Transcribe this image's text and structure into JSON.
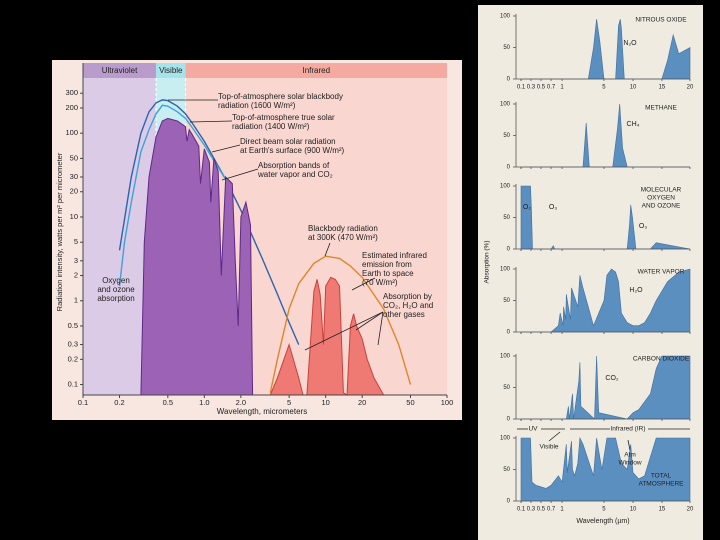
{
  "chart_data": [
    {
      "type": "line",
      "xscale": "log",
      "yscale": "log",
      "xlim": [
        0.1,
        100
      ],
      "ylim": [
        0.075,
        600
      ],
      "xticks": [
        0.1,
        0.2,
        0.5,
        {
          "value": 1,
          "label": "1.0"
        },
        {
          "value": 2,
          "label": "2.0"
        },
        5,
        10,
        20,
        50,
        100
      ],
      "yticks": [
        0.1,
        0.2,
        0.3,
        0.5,
        1,
        2,
        3,
        5,
        10,
        20,
        30,
        50,
        100,
        200,
        300
      ],
      "xlabel": "Wavelength, micrometers",
      "ylabel": "Radiation intensity, watts per m² per micrometer",
      "regions": [
        {
          "label": "Ultraviolet",
          "range": [
            0.1,
            0.4
          ],
          "color": "#dccbe6",
          "band_color": "#b99bcc"
        },
        {
          "label": "Visible",
          "range": [
            0.4,
            0.7
          ],
          "color": "#c9eef2",
          "band_color": "#a6e3ea"
        },
        {
          "label": "Infrared",
          "range": [
            0.7,
            100
          ],
          "color": "#f9d6cf",
          "band_color": "#f4aaa1"
        }
      ],
      "series": [
        {
          "color": "#2a64ad",
          "x": [
            0.2,
            0.25,
            0.3,
            0.35,
            0.4,
            0.45,
            0.5,
            0.6,
            0.7,
            0.8,
            1.0,
            1.5,
            2,
            3,
            4,
            5,
            6
          ],
          "values": [
            4,
            30,
            100,
            180,
            230,
            250,
            245,
            210,
            170,
            130,
            80,
            28,
            12,
            3.2,
            1.2,
            0.55,
            0.3
          ]
        },
        {
          "color": "#3aa3da",
          "x": [
            0.2,
            0.22,
            0.25,
            0.3,
            0.35,
            0.4,
            0.45,
            0.5,
            0.6,
            0.7,
            0.8,
            1.0,
            1.5
          ],
          "values": [
            1.5,
            5,
            15,
            60,
            110,
            170,
            215,
            210,
            180,
            150,
            115,
            72,
            28
          ]
        },
        {
          "color": "#5e2a86",
          "fill": "#9c62b6",
          "x": [
            0.3,
            0.32,
            0.35,
            0.4,
            0.45,
            0.5,
            0.6,
            0.7,
            0.72,
            0.75,
            0.8,
            0.9,
            0.93,
            1.0,
            1.1,
            1.13,
            1.2,
            1.3,
            1.38,
            1.5,
            1.7,
            1.8,
            1.9,
            2.0,
            2.2,
            2.4,
            2.5
          ],
          "values": [
            0.075,
            5,
            30,
            90,
            140,
            150,
            140,
            120,
            80,
            110,
            95,
            70,
            25,
            65,
            45,
            15,
            50,
            35,
            2,
            30,
            25,
            3,
            0.5,
            10,
            15,
            8,
            0.075
          ]
        },
        {
          "color": "#e0852b",
          "x": [
            3.5,
            4,
            5,
            6,
            8,
            10,
            13,
            16,
            20,
            30,
            40,
            50
          ],
          "values": [
            0.08,
            0.2,
            0.8,
            1.6,
            2.8,
            3.4,
            3.2,
            2.6,
            1.9,
            0.8,
            0.3,
            0.1
          ]
        },
        {
          "color": "#c9403b",
          "fill": "#ef7a74",
          "x": [
            3.5,
            4,
            5,
            6,
            6.5,
            7,
            8,
            8.5,
            9,
            9.6,
            10,
            11,
            12,
            13,
            14,
            15,
            16,
            17,
            18,
            20,
            22,
            25,
            30
          ],
          "values": [
            0.075,
            0.12,
            0.3,
            0.12,
            0.075,
            0.075,
            1.3,
            1.8,
            1.2,
            0.3,
            1.5,
            1.9,
            1.8,
            1.5,
            0.08,
            0.075,
            0.5,
            0.7,
            0.5,
            0.35,
            0.2,
            0.12,
            0.075
          ]
        }
      ],
      "annotations": [
        [
          "Top-of-atmosphere solar blackbody",
          "radiation (1600 W/m²)"
        ],
        [
          "Top-of-atmosphere true solar",
          "radiation (1400 W/m²)"
        ],
        [
          "Direct beam solar radiation",
          "at Earth's surface (900 W/m²)"
        ],
        [
          "Absorption bands of",
          "water vapor and CO₂"
        ],
        [
          "Blackbody radiation",
          "at 300K (470 W/m²)"
        ],
        [
          "Estimated infrared",
          "emission from",
          "Earth to space",
          "(70 W/m²)"
        ],
        [
          "Absorption by",
          "CO₂, H₂O and",
          "other gases"
        ],
        [
          "Oxygen",
          "and ozone",
          "absorption"
        ]
      ]
    },
    {
      "type": "area",
      "title": [
        "NITROUS OXIDE"
      ],
      "labels": [
        "N₂O"
      ],
      "color": "#5b8fc0",
      "xlim": [
        0.1,
        20
      ],
      "ylim": [
        0,
        100
      ],
      "yticks": [
        0,
        50,
        100
      ],
      "xticks": [
        0.1,
        0.3,
        0.5,
        0.7,
        1,
        5,
        10,
        15,
        20
      ],
      "x": [
        0.1,
        0.2,
        0.3,
        1,
        3.5,
        4,
        4.3,
        4.6,
        5,
        7,
        7.5,
        7.8,
        8,
        8.5,
        15,
        16,
        17,
        18,
        20
      ],
      "values": [
        0,
        0,
        0,
        0,
        0,
        50,
        95,
        60,
        0,
        0,
        85,
        95,
        80,
        0,
        0,
        30,
        70,
        40,
        50
      ]
    },
    {
      "type": "area",
      "title": [
        "METHANE"
      ],
      "labels": [
        "CH₄"
      ],
      "color": "#5b8fc0",
      "xlim": [
        0.1,
        20
      ],
      "ylim": [
        0,
        100
      ],
      "yticks": [
        0,
        50,
        100
      ],
      "xticks": [
        0.1,
        0.3,
        0.5,
        0.7,
        1,
        5,
        10,
        15,
        20
      ],
      "x": [
        0.1,
        1,
        3,
        3.3,
        3.6,
        6.5,
        7.3,
        7.7,
        8.2,
        9,
        20
      ],
      "values": [
        0,
        0,
        0,
        70,
        0,
        0,
        60,
        100,
        30,
        0,
        0
      ]
    },
    {
      "type": "area",
      "title": [
        "MOLECULAR",
        "OXYGEN",
        "AND OZONE"
      ],
      "labels": [
        "O₂",
        "O₃",
        "O₃"
      ],
      "color": "#5b8fc0",
      "xlim": [
        0.1,
        20
      ],
      "ylim": [
        0,
        100
      ],
      "yticks": [
        0,
        50,
        100
      ],
      "xticks": [
        0.1,
        0.3,
        0.5,
        0.7,
        1,
        5,
        10,
        15,
        20
      ],
      "x": [
        0.1,
        0.29,
        0.31,
        0.33,
        0.7,
        0.76,
        0.8,
        9,
        9.4,
        9.6,
        9.9,
        10.5,
        13,
        14,
        20
      ],
      "values": [
        100,
        100,
        60,
        0,
        0,
        5,
        0,
        0,
        40,
        70,
        50,
        0,
        0,
        10,
        0
      ]
    },
    {
      "type": "area",
      "title": [
        "WATER VAPOR"
      ],
      "labels": [
        "H₂O"
      ],
      "color": "#5b8fc0",
      "ylabel": "Absorption (%)",
      "xlim": [
        0.1,
        20
      ],
      "ylim": [
        0,
        100
      ],
      "yticks": [
        0,
        50,
        100
      ],
      "xticks": [
        0.1,
        0.3,
        0.5,
        0.7,
        1,
        5,
        10,
        15,
        20
      ],
      "x": [
        0.1,
        0.7,
        0.9,
        0.95,
        1.1,
        1.15,
        1.35,
        1.4,
        1.8,
        1.9,
        2.5,
        2.7,
        3,
        3.5,
        4,
        5,
        5.5,
        6.3,
        7,
        7.5,
        8,
        9,
        10,
        11,
        12,
        13,
        14,
        16,
        18,
        20
      ],
      "values": [
        0,
        0,
        10,
        30,
        10,
        40,
        20,
        60,
        20,
        70,
        40,
        90,
        70,
        40,
        10,
        50,
        90,
        100,
        95,
        80,
        30,
        15,
        10,
        10,
        15,
        30,
        50,
        80,
        95,
        100
      ]
    },
    {
      "type": "area",
      "title": [
        "CARBON DIOXIDE"
      ],
      "labels": [
        "CO₂"
      ],
      "color": "#5b8fc0",
      "xlim": [
        0.1,
        20
      ],
      "ylim": [
        0,
        100
      ],
      "yticks": [
        0,
        50,
        100
      ],
      "xticks": [
        0.1,
        0.3,
        0.5,
        0.7,
        1,
        5,
        10,
        15,
        20
      ],
      "x": [
        0.1,
        1.4,
        1.6,
        1.7,
        2,
        2.1,
        2.6,
        2.7,
        2.8,
        4.1,
        4.3,
        4.5,
        9,
        10,
        11,
        13,
        14,
        15,
        20
      ],
      "values": [
        0,
        0,
        20,
        0,
        40,
        0,
        60,
        90,
        20,
        0,
        100,
        10,
        0,
        10,
        15,
        40,
        80,
        100,
        100
      ]
    },
    {
      "type": "area",
      "title": [
        "TOTAL",
        "ATMOSPHERE"
      ],
      "color": "#5b8fc0",
      "xlabel": "Wavelength (µm)",
      "annotations": [
        [
          "UV"
        ],
        [
          "Visible"
        ],
        [
          "Infrared (IR)"
        ],
        [
          "Atm",
          "Window"
        ]
      ],
      "xlim": [
        0.1,
        20
      ],
      "ylim": [
        0,
        100
      ],
      "yticks": [
        0,
        50,
        100
      ],
      "xticks": [
        0.1,
        0.3,
        0.5,
        0.7,
        1,
        5,
        10,
        15,
        20
      ],
      "x": [
        0.1,
        0.29,
        0.32,
        0.4,
        0.6,
        0.7,
        0.9,
        1,
        1.4,
        1.5,
        1.9,
        2,
        2.2,
        2.5,
        2.7,
        3,
        4,
        4.3,
        4.8,
        5.5,
        6,
        7,
        8,
        9,
        9.6,
        10,
        11,
        12,
        13,
        14,
        15,
        20
      ],
      "values": [
        100,
        100,
        30,
        25,
        20,
        25,
        40,
        30,
        90,
        45,
        95,
        50,
        40,
        60,
        100,
        90,
        40,
        100,
        50,
        100,
        100,
        100,
        60,
        50,
        90,
        45,
        35,
        40,
        70,
        100,
        100,
        100
      ]
    }
  ]
}
